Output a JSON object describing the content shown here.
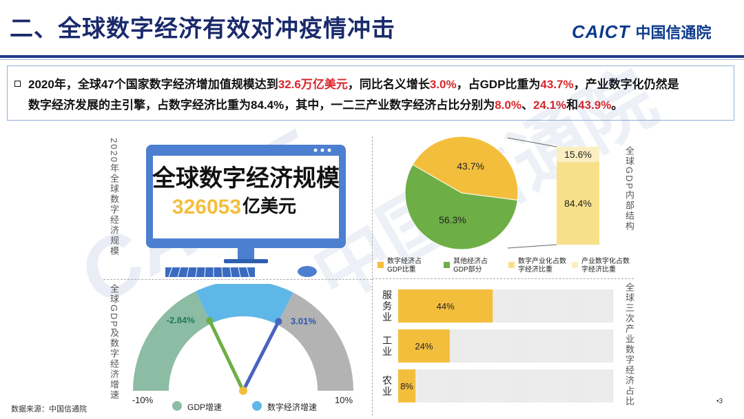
{
  "header": {
    "title": "二、全球数字经济有效对冲疫情冲击",
    "logo_text": "CAICT",
    "logo_cn": "中国信通院"
  },
  "summary": {
    "s1": "2020年，全球47个国家数字经济增加值规模达到",
    "h1": "32.6万亿美元",
    "s2": "，同比名义增长",
    "h2": "3.0%",
    "s3": "，占GDP比重为",
    "h3": "43.7%",
    "s4": "，产业数字化仍然是",
    "s5": "数字经济发展的主引擎，占数字经济比重为84.4%，其中，一二三产业数字经济占比分别为",
    "h4": "8.0%",
    "s6": "、",
    "h5": "24.1%",
    "s7": "和",
    "h6": "43.9%",
    "s8": "。"
  },
  "monitor": {
    "line1": "全球数字经济规模",
    "value": "326053",
    "unit": "亿美元"
  },
  "vlabels": {
    "scale": "2020年全球数字经济规模",
    "growth": "全球GDP及数字经济增速",
    "structure": "全球GDP内部结构",
    "industry": "全球三次产业数字经济占比"
  },
  "footer": {
    "source": "数据来源：中国信通院",
    "page": "•3"
  },
  "colors": {
    "yellow": "#f4be3d",
    "green": "#6eae46",
    "light_yellow": "#f7e08a",
    "pale_yellow": "#fbeec0",
    "blue_gauge": "#5fb7e8",
    "green_gauge": "#8cbca3",
    "gray_gauge": "#b3b3b3",
    "title_blue": "#1a2a6b",
    "red": "#d9262b"
  },
  "chart_data": [
    {
      "type": "pie",
      "labels": [
        "数字经济占GDP比重",
        "其他经济占GDP部分"
      ],
      "values": [
        43.7,
        56.3
      ],
      "value_labels": [
        "43.7%",
        "56.3%"
      ],
      "stack": {
        "labels": [
          "数字产业化占数字经济比重",
          "产业数字化占数字经济比重"
        ],
        "values": [
          15.6,
          84.4
        ],
        "value_labels": [
          "15.6%",
          "84.4%"
        ]
      },
      "legend": [
        {
          "label": "数字经济占GDP比重",
          "color": "#f4be3d"
        },
        {
          "label": "其他经济占GDP部分",
          "color": "#6eae46"
        },
        {
          "label": "数字产业化占数字经济比重",
          "color": "#f7e08a"
        },
        {
          "label": "产业数字化占数字经济比重",
          "color": "#fbeec0"
        }
      ]
    },
    {
      "type": "bar",
      "orientation": "horizontal",
      "categories": [
        "服务业",
        "工业",
        "农业"
      ],
      "values": [
        44,
        24,
        8
      ],
      "value_labels": [
        "44%",
        "24%",
        "8%"
      ],
      "xlim": [
        0,
        100
      ]
    },
    {
      "type": "gauge",
      "range": [
        -10,
        10
      ],
      "range_labels": [
        "-10%",
        "10%"
      ],
      "series": [
        {
          "name": "GDP增速",
          "value": -2.84,
          "label": "-2.84%",
          "color": "#6eae46"
        },
        {
          "name": "数字经济增速",
          "value": 3.01,
          "label": "3.01%",
          "color": "#4a63c0"
        }
      ],
      "legend": [
        {
          "label": "GDP增速",
          "color": "#8cbca3"
        },
        {
          "label": "数字经济增速",
          "color": "#5fb7e8"
        }
      ]
    }
  ]
}
